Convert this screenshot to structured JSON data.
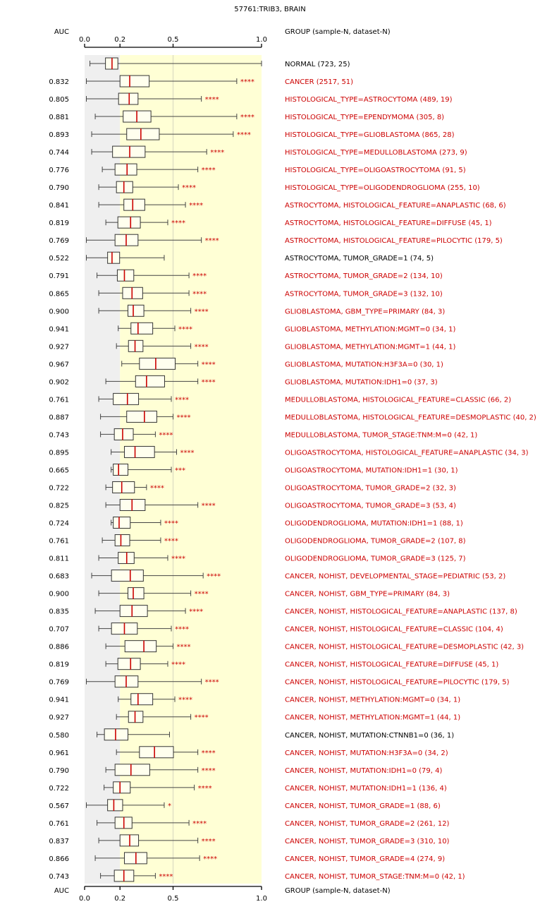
{
  "chart_data": {
    "type": "boxplot",
    "title": "57761:TRIB3, BRAIN",
    "auc_header": "AUC",
    "group_header": "GROUP (sample-N, dataset-N)",
    "xlim": [
      0,
      1
    ],
    "ticks": [
      {
        "v": 0,
        "label": "0.0"
      },
      {
        "v": 0.2,
        "label": "0.2"
      },
      {
        "v": 0.5,
        "label": "0.5"
      },
      {
        "v": 1,
        "label": "1.0"
      }
    ],
    "bands": [
      {
        "from": 0,
        "to": 0.2,
        "color": "#efefef"
      },
      {
        "from": 0.2,
        "to": 1,
        "color": "#ffffd5"
      }
    ],
    "reference_line": 0.5,
    "colors": {
      "significant": "#cc0000",
      "normal": "#000000",
      "box_stroke": "#333333",
      "median": "#cc0000"
    },
    "rows": [
      {
        "auc": "",
        "label": "NORMAL (723, 25)",
        "sig": "",
        "color": "#000000",
        "box": [
          0.03,
          0.118,
          0.155,
          0.188,
          1.0
        ]
      },
      {
        "auc": "0.832",
        "label": "CANCER (2517, 51)",
        "sig": "****",
        "color": "#cc0000",
        "box": [
          0.01,
          0.2,
          0.255,
          0.365,
          0.86
        ]
      },
      {
        "auc": "0.805",
        "label": "HISTOLOGICAL_TYPE=ASTROCYTOMA (489, 19)",
        "sig": "****",
        "color": "#cc0000",
        "box": [
          0.01,
          0.192,
          0.252,
          0.302,
          0.66
        ]
      },
      {
        "auc": "0.881",
        "label": "HISTOLOGICAL_TYPE=EPENDYMOMA (305, 8)",
        "sig": "****",
        "color": "#cc0000",
        "box": [
          0.06,
          0.218,
          0.295,
          0.375,
          0.86
        ]
      },
      {
        "auc": "0.893",
        "label": "HISTOLOGICAL_TYPE=GLIOBLASTOMA (865, 28)",
        "sig": "****",
        "color": "#cc0000",
        "box": [
          0.04,
          0.238,
          0.318,
          0.422,
          0.84
        ]
      },
      {
        "auc": "0.744",
        "label": "HISTOLOGICAL_TYPE=MEDULLOBLASTOMA (273, 9)",
        "sig": "****",
        "color": "#cc0000",
        "box": [
          0.04,
          0.158,
          0.255,
          0.342,
          0.69
        ]
      },
      {
        "auc": "0.776",
        "label": "HISTOLOGICAL_TYPE=OLIGOASTROCYTOMA (91, 5)",
        "sig": "****",
        "color": "#cc0000",
        "box": [
          0.1,
          0.172,
          0.24,
          0.295,
          0.64
        ]
      },
      {
        "auc": "0.790",
        "label": "HISTOLOGICAL_TYPE=OLIGODENDROGLIOMA (255, 10)",
        "sig": "****",
        "color": "#cc0000",
        "box": [
          0.08,
          0.18,
          0.222,
          0.272,
          0.53
        ]
      },
      {
        "auc": "0.841",
        "label": "ASTROCYTOMA, HISTOLOGICAL_FEATURE=ANAPLASTIC (68, 6)",
        "sig": "****",
        "color": "#cc0000",
        "box": [
          0.08,
          0.222,
          0.272,
          0.34,
          0.57
        ]
      },
      {
        "auc": "0.819",
        "label": "ASTROCYTOMA, HISTOLOGICAL_FEATURE=DIFFUSE (45, 1)",
        "sig": "****",
        "color": "#cc0000",
        "box": [
          0.12,
          0.188,
          0.26,
          0.315,
          0.47
        ]
      },
      {
        "auc": "0.769",
        "label": "ASTROCYTOMA, HISTOLOGICAL_FEATURE=PILOCYTIC (179, 5)",
        "sig": "****",
        "color": "#cc0000",
        "box": [
          0.01,
          0.172,
          0.235,
          0.302,
          0.66
        ]
      },
      {
        "auc": "0.522",
        "label": "ASTROCYTOMA, TUMOR_GRADE=1 (74, 5)",
        "sig": "",
        "color": "#000000",
        "box": [
          0.01,
          0.13,
          0.155,
          0.198,
          0.45
        ]
      },
      {
        "auc": "0.791",
        "label": "ASTROCYTOMA, TUMOR_GRADE=2 (134, 10)",
        "sig": "****",
        "color": "#cc0000",
        "box": [
          0.07,
          0.185,
          0.225,
          0.278,
          0.59
        ]
      },
      {
        "auc": "0.865",
        "label": "ASTROCYTOMA, TUMOR_GRADE=3 (132, 10)",
        "sig": "****",
        "color": "#cc0000",
        "box": [
          0.08,
          0.215,
          0.268,
          0.328,
          0.59
        ]
      },
      {
        "auc": "0.900",
        "label": "GLIOBLASTOMA, GBM_TYPE=PRIMARY (84, 3)",
        "sig": "****",
        "color": "#cc0000",
        "box": [
          0.08,
          0.245,
          0.275,
          0.335,
          0.6
        ]
      },
      {
        "auc": "0.941",
        "label": "GLIOBLASTOMA, METHYLATION:MGMT=0 (34, 1)",
        "sig": "****",
        "color": "#cc0000",
        "box": [
          0.19,
          0.262,
          0.302,
          0.385,
          0.51
        ]
      },
      {
        "auc": "0.927",
        "label": "GLIOBLASTOMA, METHYLATION:MGMT=1 (44, 1)",
        "sig": "****",
        "color": "#cc0000",
        "box": [
          0.18,
          0.248,
          0.285,
          0.33,
          0.6
        ]
      },
      {
        "auc": "0.967",
        "label": "GLIOBLASTOMA, MUTATION:H3F3A=0 (30, 1)",
        "sig": "****",
        "color": "#cc0000",
        "box": [
          0.21,
          0.31,
          0.402,
          0.512,
          0.64
        ]
      },
      {
        "auc": "0.902",
        "label": "GLIOBLASTOMA, MUTATION:IDH1=0 (37, 3)",
        "sig": "****",
        "color": "#cc0000",
        "box": [
          0.12,
          0.288,
          0.35,
          0.452,
          0.64
        ]
      },
      {
        "auc": "0.761",
        "label": "MEDULLOBLASTOMA, HISTOLOGICAL_FEATURE=CLASSIC (66, 2)",
        "sig": "****",
        "color": "#cc0000",
        "box": [
          0.08,
          0.162,
          0.242,
          0.305,
          0.49
        ]
      },
      {
        "auc": "0.887",
        "label": "MEDULLOBLASTOMA, HISTOLOGICAL_FEATURE=DESMOPLASTIC (40, 2)",
        "sig": "****",
        "color": "#cc0000",
        "box": [
          0.09,
          0.238,
          0.338,
          0.408,
          0.5
        ]
      },
      {
        "auc": "0.743",
        "label": "MEDULLOBLASTOMA, TUMOR_STAGE:TNM:M=0 (42, 1)",
        "sig": "****",
        "color": "#cc0000",
        "box": [
          0.09,
          0.168,
          0.215,
          0.275,
          0.4
        ]
      },
      {
        "auc": "0.895",
        "label": "OLIGOASTROCYTOMA, HISTOLOGICAL_FEATURE=ANAPLASTIC (34, 3)",
        "sig": "****",
        "color": "#cc0000",
        "box": [
          0.15,
          0.225,
          0.285,
          0.395,
          0.52
        ]
      },
      {
        "auc": "0.665",
        "label": "OLIGOASTROCYTOMA, MUTATION:IDH1=1 (30, 1)",
        "sig": "***",
        "color": "#cc0000",
        "box": [
          0.15,
          0.162,
          0.192,
          0.245,
          0.49
        ]
      },
      {
        "auc": "0.722",
        "label": "OLIGOASTROCYTOMA, TUMOR_GRADE=2 (32, 3)",
        "sig": "****",
        "color": "#cc0000",
        "box": [
          0.12,
          0.158,
          0.21,
          0.282,
          0.35
        ]
      },
      {
        "auc": "0.825",
        "label": "OLIGOASTROCYTOMA, TUMOR_GRADE=3 (53, 4)",
        "sig": "****",
        "color": "#cc0000",
        "box": [
          0.12,
          0.2,
          0.268,
          0.342,
          0.64
        ]
      },
      {
        "auc": "0.724",
        "label": "OLIGODENDROGLIOMA, MUTATION:IDH1=1 (88, 1)",
        "sig": "****",
        "color": "#cc0000",
        "box": [
          0.15,
          0.162,
          0.195,
          0.258,
          0.43
        ]
      },
      {
        "auc": "0.761",
        "label": "OLIGODENDROGLIOMA, TUMOR_GRADE=2 (107, 8)",
        "sig": "****",
        "color": "#cc0000",
        "box": [
          0.1,
          0.172,
          0.205,
          0.255,
          0.43
        ]
      },
      {
        "auc": "0.811",
        "label": "OLIGODENDROGLIOMA, TUMOR_GRADE=3 (125, 7)",
        "sig": "****",
        "color": "#cc0000",
        "box": [
          0.08,
          0.19,
          0.238,
          0.28,
          0.47
        ]
      },
      {
        "auc": "0.683",
        "label": "CANCER, NOHIST, DEVELOPMENTAL_STAGE=PEDIATRIC (53, 2)",
        "sig": "****",
        "color": "#cc0000",
        "box": [
          0.04,
          0.152,
          0.258,
          0.332,
          0.67
        ]
      },
      {
        "auc": "0.900",
        "label": "CANCER, NOHIST, GBM_TYPE=PRIMARY (84, 3)",
        "sig": "****",
        "color": "#cc0000",
        "box": [
          0.08,
          0.245,
          0.275,
          0.335,
          0.6
        ]
      },
      {
        "auc": "0.835",
        "label": "CANCER, NOHIST, HISTOLOGICAL_FEATURE=ANAPLASTIC (137, 8)",
        "sig": "****",
        "color": "#cc0000",
        "box": [
          0.06,
          0.2,
          0.268,
          0.355,
          0.57
        ]
      },
      {
        "auc": "0.707",
        "label": "CANCER, NOHIST, HISTOLOGICAL_FEATURE=CLASSIC (104, 4)",
        "sig": "****",
        "color": "#cc0000",
        "box": [
          0.08,
          0.152,
          0.225,
          0.298,
          0.49
        ]
      },
      {
        "auc": "0.886",
        "label": "CANCER, NOHIST, HISTOLOGICAL_FEATURE=DESMOPLASTIC (42, 3)",
        "sig": "****",
        "color": "#cc0000",
        "box": [
          0.12,
          0.228,
          0.335,
          0.405,
          0.5
        ]
      },
      {
        "auc": "0.819",
        "label": "CANCER, NOHIST, HISTOLOGICAL_FEATURE=DIFFUSE (45, 1)",
        "sig": "****",
        "color": "#cc0000",
        "box": [
          0.12,
          0.188,
          0.26,
          0.315,
          0.47
        ]
      },
      {
        "auc": "0.769",
        "label": "CANCER, NOHIST, HISTOLOGICAL_FEATURE=PILOCYTIC (179, 5)",
        "sig": "****",
        "color": "#cc0000",
        "box": [
          0.01,
          0.172,
          0.235,
          0.302,
          0.66
        ]
      },
      {
        "auc": "0.941",
        "label": "CANCER, NOHIST, METHYLATION:MGMT=0 (34, 1)",
        "sig": "****",
        "color": "#cc0000",
        "box": [
          0.19,
          0.262,
          0.302,
          0.385,
          0.51
        ]
      },
      {
        "auc": "0.927",
        "label": "CANCER, NOHIST, METHYLATION:MGMT=1 (44, 1)",
        "sig": "****",
        "color": "#cc0000",
        "box": [
          0.18,
          0.248,
          0.285,
          0.33,
          0.6
        ]
      },
      {
        "auc": "0.580",
        "label": "CANCER, NOHIST, MUTATION:CTNNB1=0 (36, 1)",
        "sig": "",
        "color": "#000000",
        "box": [
          0.07,
          0.112,
          0.175,
          0.245,
          0.48
        ]
      },
      {
        "auc": "0.961",
        "label": "CANCER, NOHIST, MUTATION:H3F3A=0 (34, 2)",
        "sig": "****",
        "color": "#cc0000",
        "box": [
          0.18,
          0.31,
          0.395,
          0.502,
          0.64
        ]
      },
      {
        "auc": "0.790",
        "label": "CANCER, NOHIST, MUTATION:IDH1=0 (79, 4)",
        "sig": "****",
        "color": "#cc0000",
        "box": [
          0.12,
          0.172,
          0.262,
          0.368,
          0.64
        ]
      },
      {
        "auc": "0.722",
        "label": "CANCER, NOHIST, MUTATION:IDH1=1 (136, 4)",
        "sig": "****",
        "color": "#cc0000",
        "box": [
          0.11,
          0.162,
          0.2,
          0.258,
          0.62
        ]
      },
      {
        "auc": "0.567",
        "label": "CANCER, NOHIST, TUMOR_GRADE=1 (88, 6)",
        "sig": "*",
        "color": "#cc0000",
        "box": [
          0.01,
          0.13,
          0.165,
          0.215,
          0.45
        ]
      },
      {
        "auc": "0.761",
        "label": "CANCER, NOHIST, TUMOR_GRADE=2 (261, 12)",
        "sig": "****",
        "color": "#cc0000",
        "box": [
          0.07,
          0.172,
          0.222,
          0.268,
          0.59
        ]
      },
      {
        "auc": "0.837",
        "label": "CANCER, NOHIST, TUMOR_GRADE=3 (310, 10)",
        "sig": "****",
        "color": "#cc0000",
        "box": [
          0.08,
          0.2,
          0.255,
          0.305,
          0.64
        ]
      },
      {
        "auc": "0.866",
        "label": "CANCER, NOHIST, TUMOR_GRADE=4 (274, 9)",
        "sig": "****",
        "color": "#cc0000",
        "box": [
          0.06,
          0.225,
          0.29,
          0.352,
          0.65
        ]
      },
      {
        "auc": "0.743",
        "label": "CANCER, NOHIST, TUMOR_STAGE:TNM:M=0 (42, 1)",
        "sig": "****",
        "color": "#cc0000",
        "box": [
          0.09,
          0.168,
          0.222,
          0.278,
          0.4
        ]
      }
    ]
  }
}
